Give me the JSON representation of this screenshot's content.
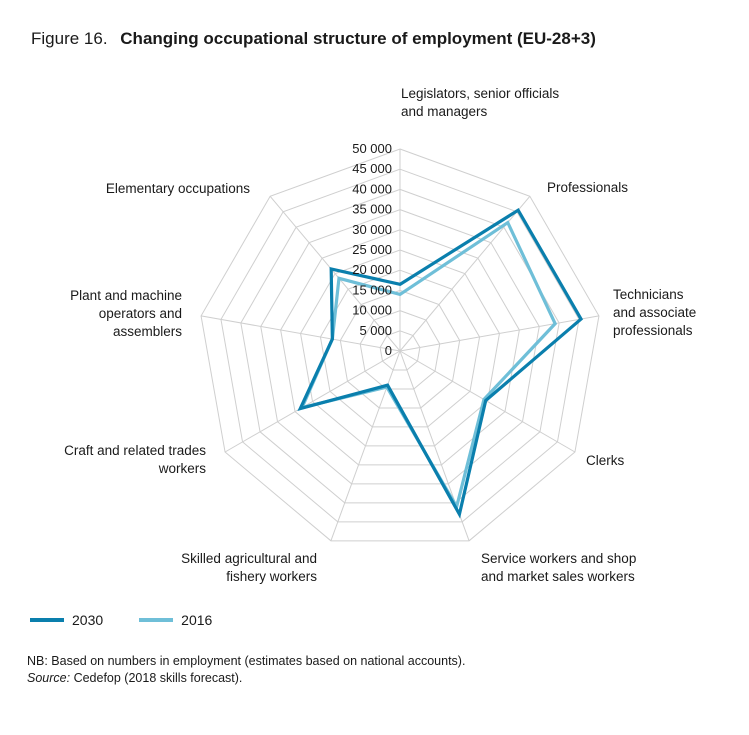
{
  "figure": {
    "number_label": "Figure 16.",
    "title": "Changing occupational structure of employment (EU-28+3)"
  },
  "notes": {
    "nb": "NB: Based on numbers in employment (estimates based on national accounts).",
    "source_label": "Source:",
    "source_text": " Cedefop (2018 skills forecast)."
  },
  "chart_data": {
    "type": "radar",
    "title": "Changing occupational structure of employment (EU-28+3)",
    "categories": [
      "Legislators, senior officials and managers",
      "Professionals",
      "Technicians and associate professionals",
      "Clerks",
      "Service workers and shop and market sales workers",
      "Skilled agricultural and fishery workers",
      "Craft and related trades workers",
      "Plant and machine operators and assemblers",
      "Elementary occupations"
    ],
    "category_label_lines": [
      [
        "Legislators, senior officials",
        "and managers"
      ],
      [
        "Professionals"
      ],
      [
        "Technicians",
        "and associate",
        "professionals"
      ],
      [
        "Clerks"
      ],
      [
        "Service workers and shop",
        "and market sales workers"
      ],
      [
        "Skilled agricultural and",
        "fishery workers"
      ],
      [
        "Craft and related trades",
        "workers"
      ],
      [
        "Plant and machine",
        "operators and",
        "assemblers"
      ],
      [
        "Elementary occupations"
      ]
    ],
    "radial_range": [
      0,
      50000
    ],
    "radial_ticks": [
      0,
      5000,
      10000,
      15000,
      20000,
      25000,
      30000,
      35000,
      40000,
      45000,
      50000
    ],
    "radial_tick_labels": [
      "0",
      "5 000",
      "10 000",
      "15 000",
      "20 000",
      "25 000",
      "30 000",
      "35 000",
      "40 000",
      "45 000",
      "50 000"
    ],
    "grid": true,
    "legend_position": "bottom-left",
    "series": [
      {
        "name": "2030",
        "color": "#0a7fad",
        "values": [
          16500,
          45500,
          45500,
          24500,
          43000,
          9000,
          28500,
          17000,
          26500
        ]
      },
      {
        "name": "2016",
        "color": "#6fbfd8",
        "values": [
          14000,
          41500,
          39000,
          24000,
          41000,
          9500,
          28000,
          17000,
          23500
        ]
      }
    ]
  }
}
